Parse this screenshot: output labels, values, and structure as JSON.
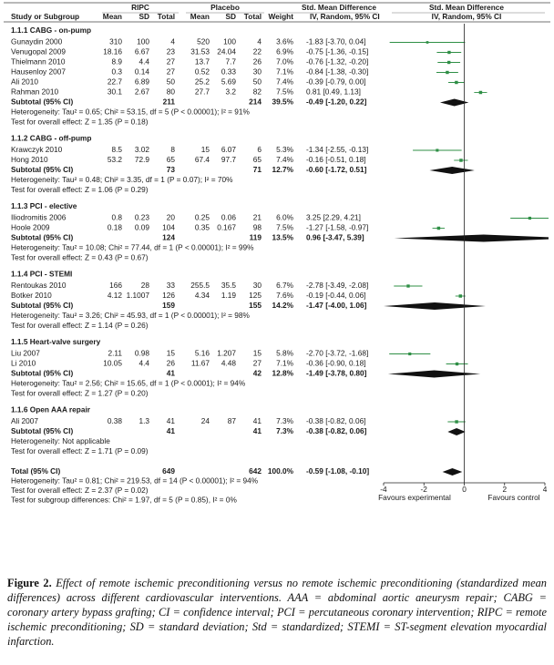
{
  "header": {
    "groups": [
      "RIPC",
      "Placebo",
      "Std. Mean Difference",
      "Std. Mean Difference"
    ],
    "columns": [
      "Study or Subgroup",
      "Mean",
      "SD",
      "Total",
      "Mean",
      "SD",
      "Total",
      "Weight",
      "IV, Random, 95% CI",
      "IV, Random, 95% CI"
    ]
  },
  "marker_color": "#2f8f46",
  "subgroups": [
    {
      "title": "1.1.1 CABG - on-pump",
      "studies": [
        {
          "cells": [
            "Gunaydin 2000",
            "310",
            "100",
            "4",
            "520",
            "100",
            "4"
          ],
          "weight": 3.6,
          "weight_label": "3.6%",
          "ci": [
            -1.83,
            -3.7,
            0.04
          ],
          "ci_label": "-1.83 [-3.70, 0.04]"
        },
        {
          "cells": [
            "Venugopal 2009",
            "18.16",
            "6.67",
            "23",
            "31.53",
            "24.04",
            "22"
          ],
          "weight": 6.9,
          "weight_label": "6.9%",
          "ci": [
            -0.75,
            -1.36,
            -0.15
          ],
          "ci_label": "-0.75 [-1.36, -0.15]"
        },
        {
          "cells": [
            "Thielmann 2010",
            "8.9",
            "4.4",
            "27",
            "13.7",
            "7.7",
            "26"
          ],
          "weight": 7.0,
          "weight_label": "7.0%",
          "ci": [
            -0.76,
            -1.32,
            -0.2
          ],
          "ci_label": "-0.76 [-1.32, -0.20]"
        },
        {
          "cells": [
            "Hausenloy 2007",
            "0.3",
            "0.14",
            "27",
            "0.52",
            "0.33",
            "30"
          ],
          "weight": 7.1,
          "weight_label": "7.1%",
          "ci": [
            -0.84,
            -1.38,
            -0.3
          ],
          "ci_label": "-0.84 [-1.38, -0.30]"
        },
        {
          "cells": [
            "Ali 2010",
            "22.7",
            "6.89",
            "50",
            "25.2",
            "5.69",
            "50"
          ],
          "weight": 7.4,
          "weight_label": "7.4%",
          "ci": [
            -0.39,
            -0.79,
            0.0
          ],
          "ci_label": "-0.39 [-0.79, 0.00]"
        },
        {
          "cells": [
            "Rahman 2010",
            "30.1",
            "2.67",
            "80",
            "27.7",
            "3.2",
            "82"
          ],
          "weight": 7.5,
          "weight_label": "7.5%",
          "ci": [
            0.81,
            0.49,
            1.13
          ],
          "ci_label": "0.81 [0.49, 1.13]"
        }
      ],
      "subtotal": {
        "cells": [
          "Subtotal (95% CI)",
          "",
          "",
          "211",
          "",
          "",
          "214"
        ],
        "weight": 39.5,
        "weight_label": "39.5%",
        "ci": [
          -0.49,
          -1.2,
          0.22
        ],
        "ci_label": "-0.49 [-1.20, 0.22]"
      },
      "heterogeneity": "Heterogeneity: Tau² = 0.65; Chi² = 53.15, df = 5 (P < 0.00001); I² = 91%",
      "test": "Test for overall effect: Z = 1.35 (P = 0.18)"
    },
    {
      "title": "1.1.2 CABG - off-pump",
      "studies": [
        {
          "cells": [
            "Krawczyk 2010",
            "8.5",
            "3.02",
            "8",
            "15",
            "6.07",
            "6"
          ],
          "weight": 5.3,
          "weight_label": "5.3%",
          "ci": [
            -1.34,
            -2.55,
            -0.13
          ],
          "ci_label": "-1.34 [-2.55, -0.13]"
        },
        {
          "cells": [
            "Hong 2010",
            "53.2",
            "72.9",
            "65",
            "67.4",
            "97.7",
            "65"
          ],
          "weight": 7.4,
          "weight_label": "7.4%",
          "ci": [
            -0.16,
            -0.51,
            0.18
          ],
          "ci_label": "-0.16 [-0.51, 0.18]"
        }
      ],
      "subtotal": {
        "cells": [
          "Subtotal (95% CI)",
          "",
          "",
          "73",
          "",
          "",
          "71"
        ],
        "weight": 12.7,
        "weight_label": "12.7%",
        "ci": [
          -0.6,
          -1.72,
          0.51
        ],
        "ci_label": "-0.60 [-1.72, 0.51]"
      },
      "heterogeneity": "Heterogeneity: Tau² = 0.48; Chi² = 3.35, df = 1 (P = 0.07); I² = 70%",
      "test": "Test for overall effect: Z = 1.06 (P = 0.29)"
    },
    {
      "title": "1.1.3 PCI - elective",
      "studies": [
        {
          "cells": [
            "Iliodromitis 2006",
            "0.8",
            "0.23",
            "20",
            "0.25",
            "0.06",
            "21"
          ],
          "weight": 6.0,
          "weight_label": "6.0%",
          "ci": [
            3.25,
            2.29,
            4.21
          ],
          "ci_label": "3.25 [2.29, 4.21]"
        },
        {
          "cells": [
            "Hoole 2009",
            "0.18",
            "0.09",
            "104",
            "0.35",
            "0.167",
            "98"
          ],
          "weight": 7.5,
          "weight_label": "7.5%",
          "ci": [
            -1.27,
            -1.58,
            -0.97
          ],
          "ci_label": "-1.27 [-1.58, -0.97]"
        }
      ],
      "subtotal": {
        "cells": [
          "Subtotal (95% CI)",
          "",
          "",
          "124",
          "",
          "",
          "119"
        ],
        "weight": 13.5,
        "weight_label": "13.5%",
        "ci": [
          0.96,
          -3.47,
          5.39
        ],
        "ci_label": "0.96 [-3.47, 5.39]"
      },
      "heterogeneity": "Heterogeneity: Tau² = 10.08; Chi² = 77.44, df = 1 (P < 0.00001); I² = 99%",
      "test": "Test for overall effect: Z = 0.43 (P = 0.67)"
    },
    {
      "title": "1.1.4 PCI - STEMI",
      "studies": [
        {
          "cells": [
            "Rentoukas 2010",
            "166",
            "28",
            "33",
            "255.5",
            "35.5",
            "30"
          ],
          "weight": 6.7,
          "weight_label": "6.7%",
          "ci": [
            -2.78,
            -3.49,
            -2.08
          ],
          "ci_label": "-2.78 [-3.49, -2.08]"
        },
        {
          "cells": [
            "Botker 2010",
            "4.12",
            "1.1007",
            "126",
            "4.34",
            "1.19",
            "125"
          ],
          "weight": 7.6,
          "weight_label": "7.6%",
          "ci": [
            -0.19,
            -0.44,
            0.06
          ],
          "ci_label": "-0.19 [-0.44, 0.06]"
        }
      ],
      "subtotal": {
        "cells": [
          "Subtotal (95% CI)",
          "",
          "",
          "159",
          "",
          "",
          "155"
        ],
        "weight": 14.2,
        "weight_label": "14.2%",
        "ci": [
          -1.47,
          -4.0,
          1.06
        ],
        "ci_label": "-1.47 [-4.00, 1.06]"
      },
      "heterogeneity": "Heterogeneity: Tau² = 3.26; Chi² = 45.93, df = 1 (P < 0.00001); I² = 98%",
      "test": "Test for overall effect: Z = 1.14 (P = 0.26)"
    },
    {
      "title": "1.1.5 Heart-valve surgery",
      "studies": [
        {
          "cells": [
            "Liu 2007",
            "2.11",
            "0.98",
            "15",
            "5.16",
            "1.207",
            "15"
          ],
          "weight": 5.8,
          "weight_label": "5.8%",
          "ci": [
            -2.7,
            -3.72,
            -1.68
          ],
          "ci_label": "-2.70 [-3.72, -1.68]"
        },
        {
          "cells": [
            "Li 2010",
            "10.05",
            "4.4",
            "26",
            "11.67",
            "4.48",
            "27"
          ],
          "weight": 7.1,
          "weight_label": "7.1%",
          "ci": [
            -0.36,
            -0.9,
            0.18
          ],
          "ci_label": "-0.36 [-0.90, 0.18]"
        }
      ],
      "subtotal": {
        "cells": [
          "Subtotal (95% CI)",
          "",
          "",
          "41",
          "",
          "",
          "42"
        ],
        "weight": 12.8,
        "weight_label": "12.8%",
        "ci": [
          -1.49,
          -3.78,
          0.8
        ],
        "ci_label": "-1.49 [-3.78, 0.80]"
      },
      "heterogeneity": "Heterogeneity: Tau² = 2.56; Chi² = 15.65, df = 1 (P < 0.0001); I² = 94%",
      "test": "Test for overall effect: Z = 1.27 (P = 0.20)"
    },
    {
      "title": "1.1.6 Open AAA repair",
      "studies": [
        {
          "cells": [
            "Ali 2007",
            "0.38",
            "1.3",
            "41",
            "24",
            "87",
            "41"
          ],
          "weight": 7.3,
          "weight_label": "7.3%",
          "ci": [
            -0.38,
            -0.82,
            0.06
          ],
          "ci_label": "-0.38 [-0.82, 0.06]"
        }
      ],
      "subtotal": {
        "cells": [
          "Subtotal (95% CI)",
          "",
          "",
          "41",
          "",
          "",
          "41"
        ],
        "weight": 7.3,
        "weight_label": "7.3%",
        "ci": [
          -0.38,
          -0.82,
          0.06
        ],
        "ci_label": "-0.38 [-0.82, 0.06]"
      },
      "heterogeneity": "Heterogeneity: Not applicable",
      "test": "Test for overall effect: Z = 1.71 (P = 0.09)"
    }
  ],
  "total": {
    "cells": [
      "Total (95% CI)",
      "",
      "",
      "649",
      "",
      "",
      "642"
    ],
    "weight": 100.0,
    "weight_label": "100.0%",
    "ci": [
      -0.59,
      -1.08,
      -0.1
    ],
    "ci_label": "-0.59 [-1.08, -0.10]",
    "notes": [
      "Heterogeneity: Tau² = 0.81; Chi² = 219.53, df = 14 (P < 0.00001); I² = 94%",
      "Test for overall effect: Z = 2.37 (P = 0.02)",
      "Test for subgroup differences: Chi² = 1.97, df = 5 (P = 0.85), I² = 0%"
    ]
  },
  "axis": {
    "xlim": [
      -4,
      4
    ],
    "xticks": [
      -4,
      -2,
      0,
      2,
      4
    ],
    "left_label": "Favours experimental",
    "right_label": "Favours control"
  },
  "caption": {
    "label": "Figure 2.",
    "text": "Effect of remote ischemic preconditioning versus no remote ischemic preconditioning (standardized mean differences) across different cardiovascular interventions. AAA = abdominal aortic aneurysm repair; CABG = coronary artery bypass grafting; CI = confidence interval; PCI = percutaneous coronary intervention; RIPC = remote ischemic preconditioning; SD = standard deviation; Std = standardized; STEMI = ST-segment elevation myocardial infarction."
  }
}
